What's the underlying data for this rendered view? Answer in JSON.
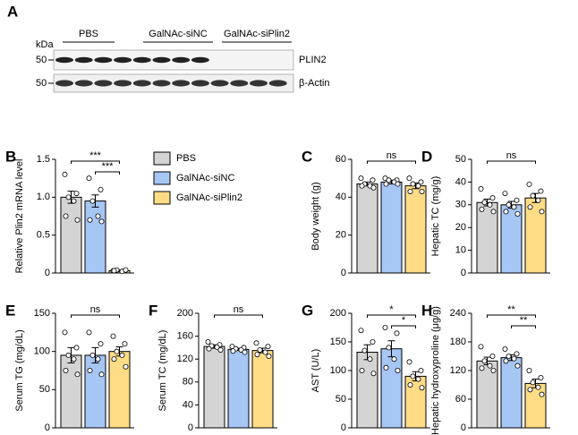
{
  "blot": {
    "panel": "A",
    "kda": "kDa",
    "groups": [
      "PBS",
      "GalNAc-siNC",
      "GalNAc-siPlin2"
    ],
    "rows": [
      {
        "marker": 50,
        "label": "PLIN2"
      },
      {
        "marker": 50,
        "label": "β-Actin"
      }
    ]
  },
  "legend": [
    {
      "name": "PBS",
      "color": "#d4d4d4"
    },
    {
      "name": "GalNAc-siNC",
      "color": "#a6c6f4"
    },
    {
      "name": "GalNAc-siPlin2",
      "color": "#ffdc86"
    }
  ],
  "chart_data": [
    {
      "type": "bar",
      "panel": "B",
      "ylabel": "Relative Plin2 mRNA level",
      "values": [
        1.0,
        0.95,
        0.03
      ],
      "errors": [
        0.08,
        0.08,
        0.01
      ],
      "points": [
        [
          1.3,
          1.05,
          1.0,
          0.95,
          0.75,
          0.7
        ],
        [
          1.25,
          1.1,
          0.95,
          0.75,
          0.7,
          0.68
        ],
        [
          0.03,
          0.03,
          0.04,
          0.02,
          0.03,
          0.04
        ]
      ],
      "ylim": [
        0,
        1.5
      ],
      "yticks": [
        0,
        0.5,
        {
          "value": 1,
          "label": "1.0"
        },
        1.5
      ],
      "comparisons": [
        {
          "groups": [
            0,
            2
          ],
          "label": "***"
        },
        {
          "groups": [
            1,
            2
          ],
          "label": "***"
        }
      ]
    },
    {
      "type": "bar",
      "panel": "C",
      "ylabel": "Body weight (g)",
      "values": [
        47,
        48,
        46
      ],
      "errors": [
        1,
        1,
        1.5
      ],
      "points": [
        [
          50,
          49,
          47,
          46,
          46,
          45
        ],
        [
          50,
          49,
          49,
          48,
          47,
          47
        ],
        [
          50,
          48,
          47,
          46,
          43,
          43
        ]
      ],
      "ylim": [
        0,
        60
      ],
      "yticks": [
        0,
        20,
        40,
        60
      ],
      "comparisons": [
        {
          "groups": [
            0,
            2
          ],
          "label": "ns"
        }
      ]
    },
    {
      "type": "bar",
      "panel": "D",
      "ylabel": "Hepatic TC (mg/g)",
      "values": [
        31,
        30,
        33
      ],
      "errors": [
        1.5,
        1.5,
        2
      ],
      "points": [
        [
          37,
          33,
          31,
          30,
          28,
          27
        ],
        [
          35,
          32,
          30,
          29,
          27,
          26
        ],
        [
          39,
          36,
          34,
          32,
          29,
          27
        ]
      ],
      "ylim": [
        0,
        50
      ],
      "yticks": [
        0,
        10,
        20,
        30,
        40,
        50
      ],
      "comparisons": [
        {
          "groups": [
            0,
            2
          ],
          "label": "ns"
        }
      ]
    },
    {
      "type": "bar",
      "panel": "E",
      "ylabel": "Serum TG (mg/dL)",
      "values": [
        95,
        95,
        100
      ],
      "errors": [
        10,
        10,
        6
      ],
      "points": [
        [
          125,
          105,
          95,
          90,
          75,
          70
        ],
        [
          125,
          110,
          95,
          90,
          75,
          70
        ],
        [
          120,
          110,
          100,
          95,
          90,
          80
        ]
      ],
      "ylim": [
        0,
        150
      ],
      "yticks": [
        0,
        50,
        100,
        150
      ],
      "comparisons": [
        {
          "groups": [
            0,
            2
          ],
          "label": "ns"
        }
      ]
    },
    {
      "type": "bar",
      "panel": "F",
      "ylabel": "Serum TC (mg/dL)",
      "values": [
        142,
        137,
        135
      ],
      "errors": [
        3,
        2,
        4
      ],
      "points": [
        [
          150,
          145,
          143,
          141,
          138,
          136
        ],
        [
          142,
          140,
          138,
          136,
          134,
          132
        ],
        [
          148,
          142,
          136,
          132,
          128,
          125
        ]
      ],
      "ylim": [
        0,
        200
      ],
      "yticks": [
        0,
        40,
        80,
        120,
        160,
        200
      ],
      "comparisons": [
        {
          "groups": [
            0,
            2
          ],
          "label": "ns"
        }
      ]
    },
    {
      "type": "bar",
      "panel": "G",
      "ylabel": "AST (U/L)",
      "values": [
        132,
        138,
        90
      ],
      "errors": [
        13,
        14,
        8
      ],
      "points": [
        [
          170,
          150,
          135,
          120,
          100,
          95
        ],
        [
          175,
          165,
          140,
          120,
          105,
          100
        ],
        [
          115,
          100,
          90,
          85,
          75,
          70
        ]
      ],
      "ylim": [
        0,
        200
      ],
      "yticks": [
        0,
        50,
        100,
        150,
        200
      ],
      "comparisons": [
        {
          "groups": [
            0,
            2
          ],
          "label": "*"
        },
        {
          "groups": [
            1,
            2
          ],
          "label": "*"
        }
      ]
    },
    {
      "type": "bar",
      "panel": "H",
      "ylabel": "Hepatic hydroxyproline (μg/g)",
      "values": [
        140,
        147,
        93
      ],
      "errors": [
        8,
        6,
        9
      ],
      "points": [
        [
          170,
          150,
          140,
          130,
          125,
          120
        ],
        [
          165,
          155,
          150,
          145,
          140,
          130
        ],
        [
          120,
          105,
          95,
          85,
          80,
          70
        ]
      ],
      "ylim": [
        0,
        240
      ],
      "yticks": [
        0,
        60,
        120,
        180,
        240
      ],
      "comparisons": [
        {
          "groups": [
            0,
            2
          ],
          "label": "**"
        },
        {
          "groups": [
            1,
            2
          ],
          "label": "**"
        }
      ]
    }
  ]
}
